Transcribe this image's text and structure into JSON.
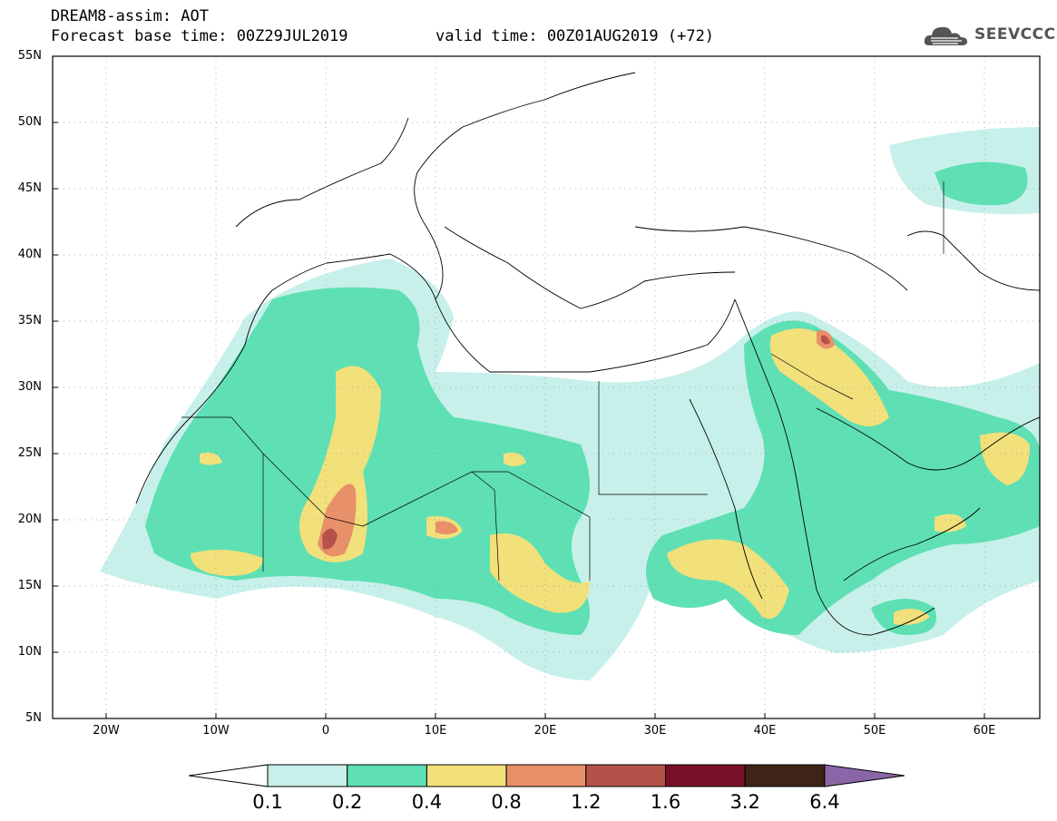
{
  "title": {
    "line1": "DREAM8-assim: AOT",
    "line2": "Forecast base time: 00Z29JUL2019",
    "valid": "valid time: 00Z01AUG2019 (+72)"
  },
  "logo": {
    "text": "SEEVCCC"
  },
  "map": {
    "lat_labels": [
      "55N",
      "50N",
      "45N",
      "40N",
      "35N",
      "30N",
      "25N",
      "20N",
      "15N",
      "10N",
      "5N"
    ],
    "lon_labels": [
      "20W",
      "10W",
      "0",
      "10E",
      "20E",
      "30E",
      "40E",
      "50E",
      "60E"
    ],
    "lat_range": [
      5,
      55
    ],
    "lon_range": [
      -25,
      65
    ]
  },
  "colorbar": {
    "labels": [
      "0.1",
      "0.2",
      "0.4",
      "0.8",
      "1.2",
      "1.6",
      "3.2",
      "6.4"
    ],
    "colors": [
      "#ffffff",
      "#c8f0ea",
      "#5ee0b4",
      "#f2e07a",
      "#e8906a",
      "#b4524a",
      "#7a0f2a",
      "#3d2417",
      "#8a66a8"
    ]
  }
}
